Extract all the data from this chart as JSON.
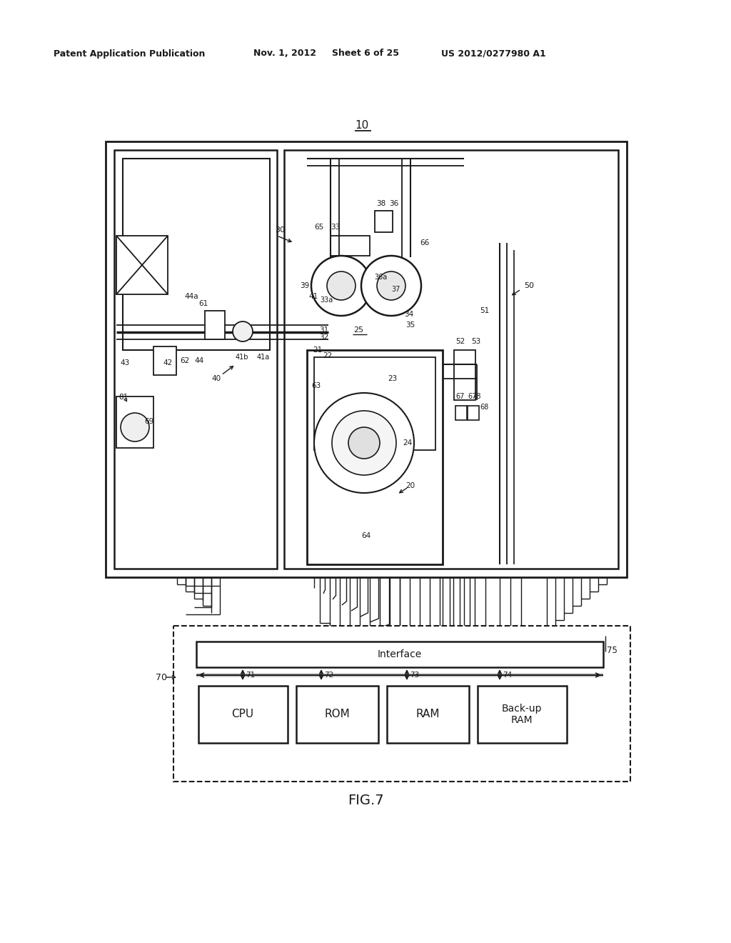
{
  "bg_color": "#ffffff",
  "line_color": "#1a1a1a",
  "header_text": "Patent Application Publication",
  "header_date": "Nov. 1, 2012",
  "header_sheet": "Sheet 6 of 25",
  "header_patent": "US 2012/0277980 A1",
  "figure_label": "FIG.7",
  "system_label": "10",
  "cpu_label": "CPU",
  "rom_label": "ROM",
  "ram_label": "RAM",
  "backup_label": "Back-up\nRAM",
  "interface_label": "Interface",
  "bus_label": "70",
  "interface_num": "75",
  "cpu_num": "71",
  "rom_num": "72",
  "ram_num": "73",
  "backup_num": "74"
}
